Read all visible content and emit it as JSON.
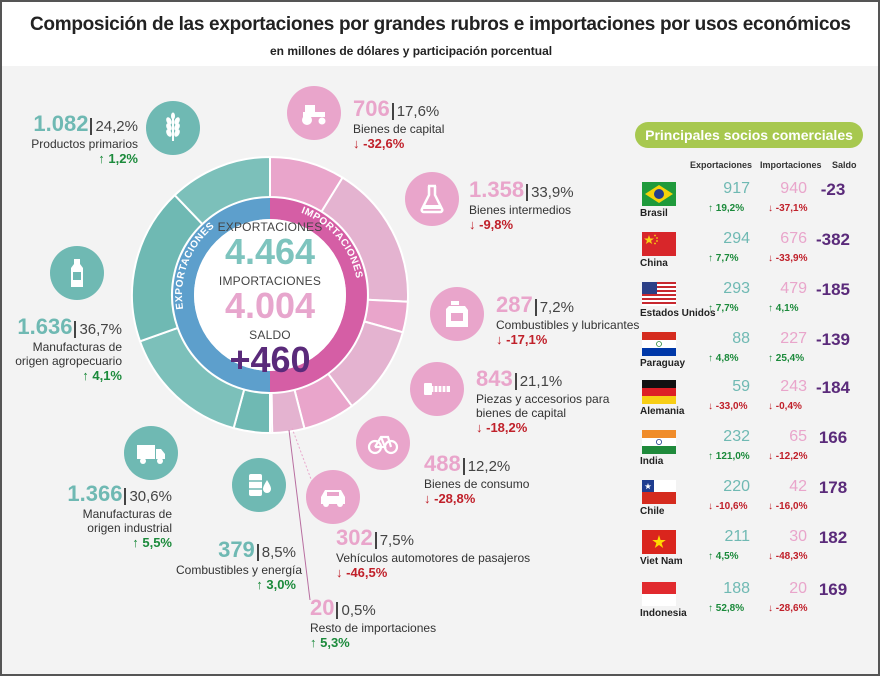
{
  "header": {
    "title": "Composición de las exportaciones por grandes rubros e importaciones por usos económicos",
    "subtitle": "en millones de dólares y participación porcentual"
  },
  "center": {
    "exp_label": "EXPORTACIONES",
    "exp_value": "4.464",
    "imp_label": "IMPORTACIONES",
    "imp_value": "4.004",
    "saldo_label": "SALDO",
    "saldo_value": "+460"
  },
  "ring_labels": {
    "left": "EXPORTACIONES",
    "right": "IMPORTACIONES"
  },
  "colors": {
    "exports": "#6fb9b3",
    "imports": "#e9a5cb",
    "saldo": "#5a2a7a",
    "up": "#1b8a3b",
    "down": "#c0202a",
    "table_header": "#a7c84f"
  },
  "exports": [
    {
      "value": "1.082",
      "share": "24,2%",
      "label": "Productos primarios",
      "change": "↑ 1,2%",
      "icon": "wheat-icon"
    },
    {
      "value": "1.636",
      "share": "36,7%",
      "label1": "Manufacturas de",
      "label2": "origen agropecuario",
      "change": "↑ 4,1%",
      "icon": "bottle-icon"
    },
    {
      "value": "1.366",
      "share": "30,6%",
      "label1": "Manufacturas de",
      "label2": "origen industrial",
      "change": "↑ 5,5%",
      "icon": "truck-icon"
    },
    {
      "value": "379",
      "share": "8,5%",
      "label": "Combustibles y energía",
      "change": "↑ 3,0%",
      "icon": "oil-barrel-icon"
    }
  ],
  "imports": [
    {
      "value": "706",
      "share": "17,6%",
      "label": "Bienes de capital",
      "change": "↓ -32,6%",
      "icon": "tractor-icon"
    },
    {
      "value": "1.358",
      "share": "33,9%",
      "label": "Bienes intermedios",
      "change": "↓ -9,8%",
      "icon": "flask-icon"
    },
    {
      "value": "287",
      "share": "7,2%",
      "label": "Combustibles y lubricantes",
      "change": "↓ -17,1%",
      "icon": "jerrycan-icon"
    },
    {
      "value": "843",
      "share": "21,1%",
      "label1": "Piezas y accesorios para",
      "label2": "bienes de capital",
      "change": "↓ -18,2%",
      "icon": "screw-icon"
    },
    {
      "value": "488",
      "share": "12,2%",
      "label": "Bienes de consumo",
      "change": "↓ -28,8%",
      "icon": "bicycle-icon"
    },
    {
      "value": "302",
      "share": "7,5%",
      "label": "Vehículos automotores de pasajeros",
      "change": "↓ -46,5%",
      "icon": "car-icon"
    },
    {
      "value": "20",
      "share": "0,5%",
      "label": "Resto de importaciones",
      "change": "↑ 5,3%"
    }
  ],
  "partners": {
    "title": "Principales socios comerciales",
    "headers": {
      "exp": "Exportaciones",
      "imp": "Importaciones",
      "saldo": "Saldo"
    },
    "rows": [
      {
        "country": "Brasil",
        "flag": "brazil-flag-icon",
        "exp": "917",
        "exp_g": "↑ 19,2%",
        "exp_dir": "up",
        "imp": "940",
        "imp_g": "↓ -37,1%",
        "imp_dir": "down",
        "saldo": "-23"
      },
      {
        "country": "China",
        "flag": "china-flag-icon",
        "exp": "294",
        "exp_g": "↑ 7,7%",
        "exp_dir": "up",
        "imp": "676",
        "imp_g": "↓ -33,9%",
        "imp_dir": "down",
        "saldo": "-382"
      },
      {
        "country": "Estados Unidos",
        "flag": "usa-flag-icon",
        "exp": "293",
        "exp_g": "↑ 7,7%",
        "exp_dir": "up",
        "imp": "479",
        "imp_g": "↑ 4,1%",
        "imp_dir": "up",
        "saldo": "-185"
      },
      {
        "country": "Paraguay",
        "flag": "paraguay-flag-icon",
        "exp": "88",
        "exp_g": "↑ 4,8%",
        "exp_dir": "up",
        "imp": "227",
        "imp_g": "↑ 25,4%",
        "imp_dir": "up",
        "saldo": "-139"
      },
      {
        "country": "Alemania",
        "flag": "germany-flag-icon",
        "exp": "59",
        "exp_g": "↓ -33,0%",
        "exp_dir": "down",
        "imp": "243",
        "imp_g": "↓ -0,4%",
        "imp_dir": "down",
        "saldo": "-184"
      },
      {
        "country": "India",
        "flag": "india-flag-icon",
        "exp": "232",
        "exp_g": "↑ 121,0%",
        "exp_dir": "up",
        "imp": "65",
        "imp_g": "↓ -12,2%",
        "imp_dir": "down",
        "saldo": "166"
      },
      {
        "country": "Chile",
        "flag": "chile-flag-icon",
        "exp": "220",
        "exp_g": "↓ -10,6%",
        "exp_dir": "down",
        "imp": "42",
        "imp_g": "↓ -16,0%",
        "imp_dir": "down",
        "saldo": "178"
      },
      {
        "country": "Viet Nam",
        "flag": "vietnam-flag-icon",
        "exp": "211",
        "exp_g": "↑ 4,5%",
        "exp_dir": "up",
        "imp": "30",
        "imp_g": "↓ -48,3%",
        "imp_dir": "down",
        "saldo": "182"
      },
      {
        "country": "Indonesia",
        "flag": "indonesia-flag-icon",
        "exp": "188",
        "exp_g": "↑ 52,8%",
        "exp_dir": "up",
        "imp": "20",
        "imp_g": "↓ -28,6%",
        "imp_dir": "down",
        "saldo": "169"
      }
    ]
  },
  "chart_data": {
    "type": "pie",
    "title": "Composición de las exportaciones por grandes rubros e importaciones por usos económicos",
    "subtitle": "en millones de dólares y participación porcentual",
    "series": [
      {
        "name": "EXPORTACIONES",
        "total": 4464,
        "categories": [
          "Productos primarios",
          "Manufacturas de origen agropecuario",
          "Manufacturas de origen industrial",
          "Combustibles y energía"
        ],
        "values": [
          1082,
          1636,
          1366,
          379
        ],
        "shares": [
          24.2,
          36.7,
          30.6,
          8.5
        ],
        "changes": [
          1.2,
          4.1,
          5.5,
          3.0
        ]
      },
      {
        "name": "IMPORTACIONES",
        "total": 4004,
        "categories": [
          "Bienes de capital",
          "Bienes intermedios",
          "Combustibles y lubricantes",
          "Piezas y accesorios para bienes de capital",
          "Bienes de consumo",
          "Vehículos automotores de pasajeros",
          "Resto de importaciones"
        ],
        "values": [
          706,
          1358,
          287,
          843,
          488,
          302,
          20
        ],
        "shares": [
          17.6,
          33.9,
          7.2,
          21.1,
          12.2,
          7.5,
          0.5
        ],
        "changes": [
          -32.6,
          -9.8,
          -17.1,
          -18.2,
          -28.8,
          -46.5,
          5.3
        ]
      }
    ],
    "saldo": 460
  }
}
